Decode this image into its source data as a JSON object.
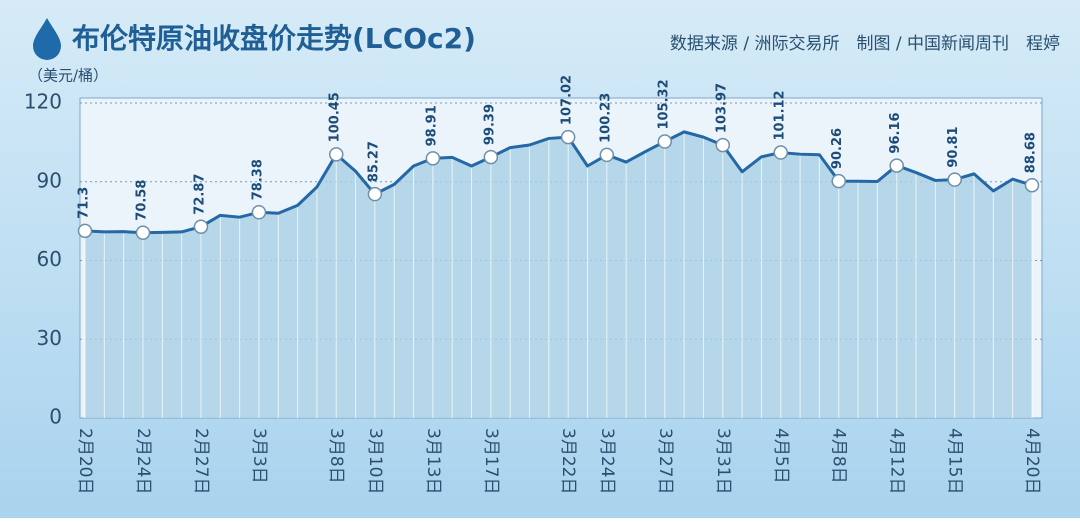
{
  "chart_data": {
    "type": "area",
    "title": "布伦特原油收盘价走势(LCOc2)",
    "source": "数据来源 / 洲际交易所　制图 / 中国新闻周刊　程婷",
    "y_label": "（美元/桶）",
    "categories": [
      "2月20日",
      null,
      null,
      "2月24日",
      null,
      null,
      "2月27日",
      null,
      null,
      "3月3日",
      null,
      null,
      null,
      "3月8日",
      null,
      "3月10日",
      null,
      null,
      "3月13日",
      null,
      null,
      "3月17日",
      null,
      null,
      null,
      "3月22日",
      null,
      "3月24日",
      null,
      null,
      "3月27日",
      null,
      null,
      "3月31日",
      null,
      null,
      "4月5日",
      null,
      null,
      "4月8日",
      null,
      null,
      "4月12日",
      null,
      null,
      "4月15日",
      null,
      null,
      null,
      "4月20日"
    ],
    "values": [
      71.3,
      70.9,
      71.0,
      70.58,
      70.7,
      70.9,
      72.87,
      77.2,
      76.5,
      78.38,
      78.0,
      81.0,
      88.0,
      100.45,
      94.0,
      85.27,
      89.0,
      96.0,
      98.91,
      99.3,
      96.0,
      99.39,
      103.0,
      104.0,
      106.5,
      107.02,
      96.0,
      100.23,
      97.5,
      101.5,
      105.32,
      109.0,
      107.0,
      103.97,
      93.8,
      99.5,
      101.12,
      100.5,
      100.3,
      90.26,
      90.2,
      90.1,
      96.16,
      93.5,
      90.5,
      90.81,
      93.0,
      86.5,
      91.0,
      88.68
    ],
    "color": "#2468a5",
    "fill": "#a9cfe6",
    "ylim": [
      0,
      120
    ],
    "yticks": [
      0,
      30,
      60,
      90,
      120
    ],
    "grid": true
  }
}
